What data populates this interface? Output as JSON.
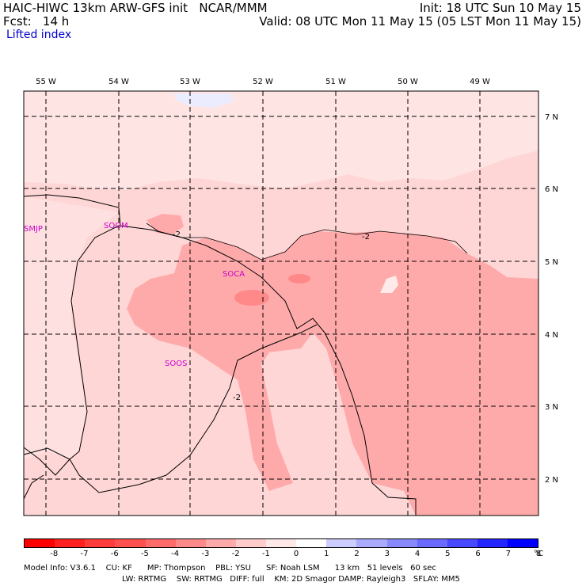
{
  "header": {
    "title_left": "HAIC-HIWC 13km ARW-GFS init   NCAR/MMM",
    "init_right": "Init: 18 UTC Sun 10 May 15",
    "fcst": "Fcst:   14 h",
    "valid": "Valid: 08 UTC Mon 11 May 15 (05 LST Mon 11 May 15)",
    "field": "Lifted index"
  },
  "map": {
    "lon_labels": [
      "55 W",
      "54 W",
      "53 W",
      "52 W",
      "51 W",
      "50 W",
      "49 W"
    ],
    "lat_labels": [
      "7 N",
      "6 N",
      "5 N",
      "4 N",
      "3 N",
      "2 N"
    ],
    "stations": [
      "SMJP",
      "SOGM",
      "SOCA",
      "SOOS"
    ],
    "contour_labels": [
      "-2",
      "-2",
      "-2"
    ],
    "colors": {
      "minus1": "#ffd0d0",
      "minus2": "#ffaaaa",
      "minus3": "#ff8888",
      "zero": "#ffe8e8",
      "positive": "#e8e8ff",
      "station": "#cc00cc"
    }
  },
  "colorbar": {
    "labels": [
      "-8",
      "-7",
      "-6",
      "-5",
      "-4",
      "-3",
      "-2",
      "-1",
      "0",
      "1",
      "2",
      "3",
      "4",
      "5",
      "6",
      "7",
      "8"
    ],
    "unit": "°C",
    "colors": [
      "#ff0000",
      "#ff2020",
      "#ff3c3c",
      "#ff5050",
      "#ff6a6a",
      "#ff8888",
      "#ffaaaa",
      "#ffcccc",
      "#ffe8e8",
      "#ffffff",
      "#ccccff",
      "#aaaaff",
      "#8888ff",
      "#6a6aff",
      "#4848ff",
      "#2424ff",
      "#0000ff"
    ]
  },
  "footer": {
    "line1": "Model Info: V3.6.1    CU: KF      MP: Thompson    PBL: YSU      SF: Noah LSM      13 km   51 levels   60 sec",
    "line2": "LW: RRTMG    SW: RRTMG   DIFF: full    KM: 2D Smagor DAMP: Rayleigh3   SFLAY: MM5"
  }
}
